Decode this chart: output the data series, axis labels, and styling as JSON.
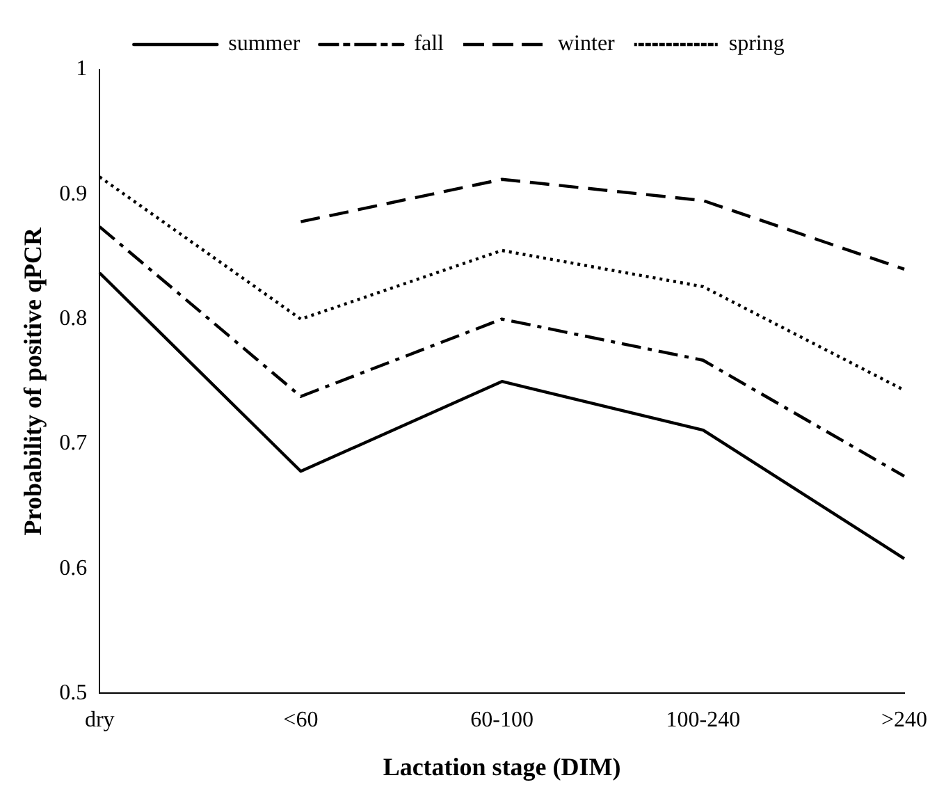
{
  "chart_data": {
    "type": "line",
    "xlabel": "Lactation stage (DIM)",
    "ylabel": "Probability of positive qPCR",
    "categories": [
      "dry",
      "<60",
      "60-100",
      "100-240",
      ">240"
    ],
    "series": [
      {
        "name": "summer",
        "color": "#000000",
        "line_style": "solid",
        "values": [
          0.837,
          0.678,
          0.75,
          0.711,
          0.608
        ]
      },
      {
        "name": "fall",
        "color": "#000000",
        "line_style": "dashdot",
        "values": [
          0.874,
          0.738,
          0.8,
          0.767,
          0.674
        ]
      },
      {
        "name": "winter",
        "color": "#000000",
        "line_style": "dashed",
        "values": [
          null,
          0.878,
          0.912,
          0.895,
          0.84
        ]
      },
      {
        "name": "spring",
        "color": "#000000",
        "line_style": "dotted",
        "values": [
          0.914,
          0.8,
          0.855,
          0.826,
          0.743
        ]
      }
    ],
    "ylim": [
      0.5,
      1
    ],
    "yticks": [
      0.5,
      0.6,
      0.7,
      0.8,
      0.9,
      1
    ],
    "grid": false,
    "legend": "top",
    "marker": "none"
  }
}
